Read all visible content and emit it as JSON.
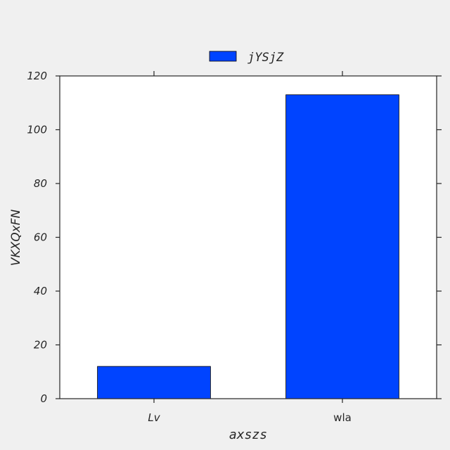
{
  "chart_data": {
    "type": "bar",
    "categories": [
      "Lv",
      "wla"
    ],
    "series": [
      {
        "name": "jYSjZ",
        "values": [
          12,
          113
        ],
        "color": "#0044ff"
      }
    ],
    "xlabel": "axszs",
    "ylabel": "VKXQxFN",
    "ylim": [
      0,
      120
    ],
    "yticks": [
      0,
      20,
      40,
      60,
      80,
      100,
      120
    ],
    "legend_position": "top-center",
    "grid": false,
    "plot_background": "#ffffff",
    "figure_background": "#f0f0f0"
  }
}
